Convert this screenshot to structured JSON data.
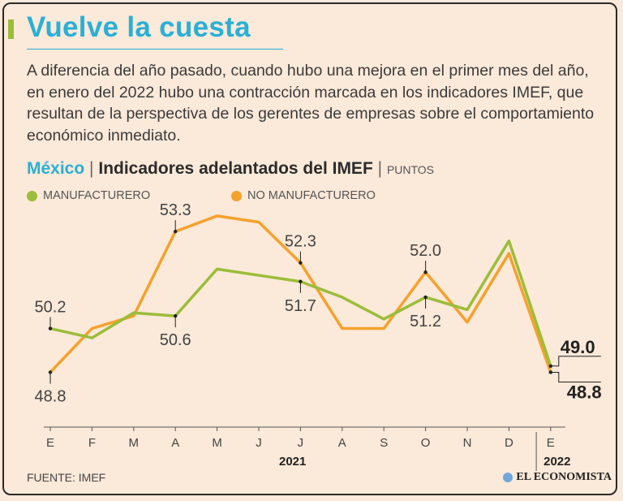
{
  "headline": "Vuelve la cuesta",
  "intro": "A diferencia del año pasado, cuando hubo una mejora en el primer mes del año, en enero del 2022 hubo una contracción marcada en los indicadores IMEF, que resultan de la perspectiva de los gerentes de empresas sobre el comportamiento económico inmediato.",
  "chart_heading": {
    "country": "México",
    "separator": "|",
    "title": "Indicadores adelantados del IMEF",
    "units": "PUNTOS"
  },
  "source": "FUENTE: IMEF",
  "brand": "EL ECONOMISTA",
  "colors": {
    "accent": "#29b0d6",
    "manufacturero": "#9bbd3a",
    "no_manufacturero": "#f5a12c",
    "background": "#fbe9d9",
    "axis": "#555555"
  },
  "chart_data": {
    "type": "line",
    "title": "Indicadores adelantados del IMEF",
    "ylabel": "PUNTOS",
    "xlabel": "",
    "categories": [
      "E",
      "F",
      "M",
      "A",
      "M",
      "J",
      "J",
      "A",
      "S",
      "O",
      "N",
      "D",
      "E"
    ],
    "year_labels": [
      {
        "label": "2021",
        "from": 0,
        "to": 11
      },
      {
        "label": "2022",
        "from": 12,
        "to": 12
      }
    ],
    "ylim": [
      47.8,
      53.9
    ],
    "grid": false,
    "series": [
      {
        "name": "MANUFACTURERO",
        "key": "manufacturero",
        "values": [
          50.2,
          49.9,
          50.7,
          50.6,
          52.1,
          51.9,
          51.7,
          51.2,
          50.5,
          51.2,
          50.8,
          53.0,
          49.0
        ]
      },
      {
        "name": "NO MANUFACTURERO",
        "key": "no_manufacturero",
        "values": [
          48.8,
          50.2,
          50.6,
          53.3,
          53.8,
          53.6,
          52.3,
          50.2,
          50.2,
          52.0,
          50.4,
          52.6,
          48.8
        ]
      }
    ],
    "annotations": [
      {
        "series": 0,
        "index": 0,
        "text": "50.2",
        "pos": "above"
      },
      {
        "series": 1,
        "index": 0,
        "text": "48.8",
        "pos": "below"
      },
      {
        "series": 1,
        "index": 3,
        "text": "53.3",
        "pos": "above"
      },
      {
        "series": 0,
        "index": 3,
        "text": "50.6",
        "pos": "below"
      },
      {
        "series": 1,
        "index": 6,
        "text": "52.3",
        "pos": "above"
      },
      {
        "series": 0,
        "index": 6,
        "text": "51.7",
        "pos": "below"
      },
      {
        "series": 1,
        "index": 9,
        "text": "52.0",
        "pos": "above"
      },
      {
        "series": 0,
        "index": 9,
        "text": "51.2",
        "pos": "below"
      },
      {
        "series": 0,
        "index": 12,
        "text": "49.0",
        "pos": "right-up",
        "bold": true
      },
      {
        "series": 1,
        "index": 12,
        "text": "48.8",
        "pos": "right-down",
        "bold": true
      }
    ]
  }
}
